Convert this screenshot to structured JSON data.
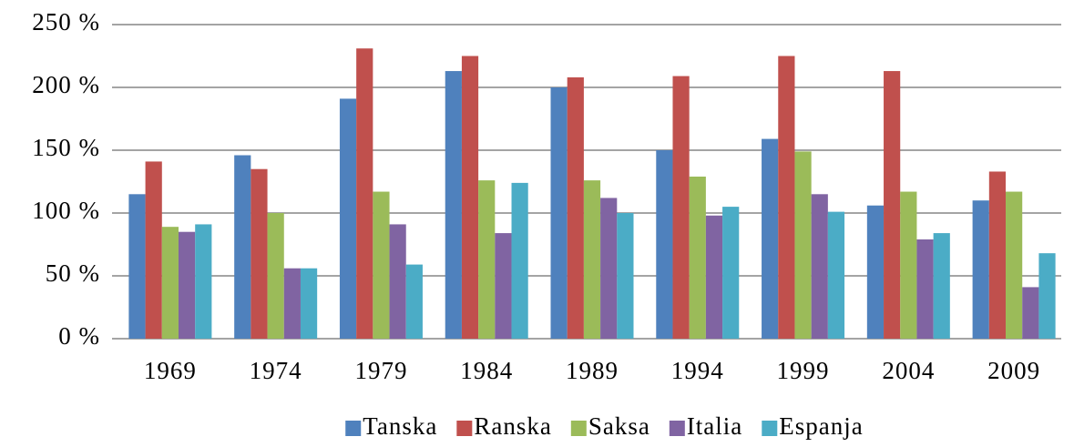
{
  "chart_data": {
    "type": "bar",
    "categories": [
      "1969",
      "1974",
      "1979",
      "1984",
      "1989",
      "1994",
      "1999",
      "2004",
      "2009"
    ],
    "series": [
      {
        "name": "Tanska",
        "color": "#4f81bd",
        "values": [
          115,
          146,
          191,
          213,
          200,
          150,
          159,
          106,
          110
        ]
      },
      {
        "name": "Ranska",
        "color": "#c0504d",
        "values": [
          141,
          135,
          231,
          225,
          208,
          209,
          225,
          213,
          133
        ]
      },
      {
        "name": "Saksa",
        "color": "#9bbb59",
        "values": [
          89,
          100,
          117,
          126,
          126,
          129,
          149,
          117,
          117
        ]
      },
      {
        "name": "Italia",
        "color": "#8064a2",
        "values": [
          85,
          56,
          91,
          84,
          112,
          98,
          115,
          79,
          41
        ]
      },
      {
        "name": "Espanja",
        "color": "#4bacc6",
        "values": [
          91,
          56,
          59,
          124,
          100,
          105,
          101,
          84,
          68
        ]
      }
    ],
    "ylim": [
      0,
      250
    ],
    "yticks": [
      {
        "value": 0,
        "label": "0 %"
      },
      {
        "value": 50,
        "label": "50 %"
      },
      {
        "value": 100,
        "label": "100 %"
      },
      {
        "value": 150,
        "label": "150 %"
      },
      {
        "value": 200,
        "label": "200 %"
      },
      {
        "value": 250,
        "label": "250 %"
      }
    ],
    "grid": true,
    "legend": "bottom"
  }
}
